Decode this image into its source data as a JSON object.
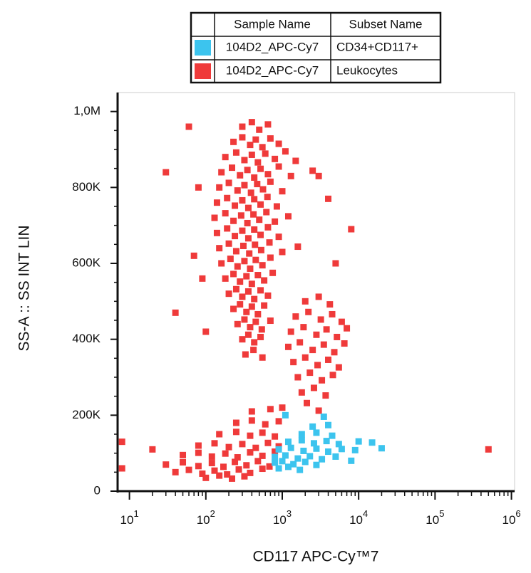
{
  "chart_data": {
    "type": "scatter",
    "legend_headers": [
      "Sample Name",
      "Subset Name"
    ],
    "xlabel": "CD117 APC-Cy™7",
    "ylabel": "SS-A :: SS INT LIN",
    "xscale": "log",
    "xlim": [
      7,
      1100000
    ],
    "xticks": [
      {
        "value": 10,
        "label": "10",
        "sup": "1"
      },
      {
        "value": 100,
        "label": "10",
        "sup": "2"
      },
      {
        "value": 1000,
        "label": "10",
        "sup": "3"
      },
      {
        "value": 10000,
        "label": "10",
        "sup": "4"
      },
      {
        "value": 100000,
        "label": "10",
        "sup": "5"
      },
      {
        "value": 1000000,
        "label": "10",
        "sup": "6"
      }
    ],
    "ylim": [
      0,
      1050000
    ],
    "yticks": [
      0,
      {
        "value": 200000,
        "label": "200K"
      },
      {
        "value": 400000,
        "label": "400K"
      },
      {
        "value": 600000,
        "label": "600K"
      },
      {
        "value": 800000,
        "label": "800K"
      },
      {
        "value": 1000000,
        "label": "1,0M"
      }
    ],
    "series": [
      {
        "sample": "104D2_APC-Cy7",
        "name": "CD34+CD117+",
        "color": "#3cc4ee",
        "x": [
          1100,
          3500,
          2500,
          4000,
          1800,
          2800,
          4500,
          1200,
          1800,
          2600,
          3800,
          5500,
          10000,
          15000,
          900,
          1300,
          1900,
          2800,
          4000,
          6000,
          9000,
          20000,
          800,
          1100,
          1600,
          2300,
          3300,
          5000,
          800,
          1000,
          1400,
          2000,
          2800,
          8000,
          900,
          1200,
          1700
        ],
        "values": [
          200000,
          196000,
          170000,
          174000,
          150000,
          154000,
          146000,
          130000,
          134000,
          126000,
          132000,
          124000,
          131000,
          128000,
          110000,
          114000,
          106000,
          112000,
          104000,
          111000,
          108000,
          113000,
          90000,
          94000,
          86000,
          92000,
          84000,
          91000,
          75000,
          79000,
          71000,
          77000,
          69000,
          80000,
          60000,
          64000,
          56000
        ]
      },
      {
        "sample": "104D2_APC-Cy7",
        "name": "Leukocytes",
        "color": "#ef3a3a",
        "x": [
          300,
          400,
          500,
          650,
          230,
          300,
          380,
          450,
          550,
          700,
          900,
          180,
          250,
          320,
          400,
          480,
          600,
          800,
          1100,
          1500,
          160,
          220,
          280,
          350,
          430,
          520,
          650,
          900,
          1300,
          2500,
          150,
          200,
          260,
          320,
          390,
          470,
          560,
          700,
          1000,
          140,
          190,
          240,
          300,
          360,
          430,
          520,
          640,
          850,
          130,
          180,
          230,
          290,
          350,
          420,
          500,
          620,
          800,
          1200,
          140,
          190,
          240,
          300,
          360,
          430,
          520,
          650,
          900,
          150,
          200,
          250,
          310,
          370,
          440,
          530,
          680,
          1000,
          1600,
          160,
          210,
          260,
          320,
          380,
          450,
          550,
          700,
          180,
          230,
          280,
          340,
          400,
          480,
          580,
          750,
          200,
          250,
          300,
          360,
          430,
          520,
          650,
          230,
          280,
          340,
          400,
          480,
          580,
          260,
          320,
          380,
          450,
          540,
          700,
          300,
          360,
          430,
          520,
          330,
          420,
          550,
          30,
          60,
          80,
          70,
          90,
          40,
          100,
          3000,
          4000,
          5000,
          8000,
          2000,
          3000,
          4200,
          1500,
          2200,
          3200,
          4500,
          6000,
          1300,
          1900,
          2800,
          3800,
          5200,
          7000,
          1200,
          1700,
          2500,
          3500,
          4800,
          6500,
          1400,
          2000,
          2900,
          4000,
          5500,
          1600,
          2300,
          3300,
          4600,
          1800,
          2600,
          3700,
          1000,
          2100,
          3000,
          400,
          700,
          250,
          400,
          600,
          900,
          150,
          250,
          380,
          550,
          800,
          80,
          130,
          200,
          300,
          450,
          650,
          900,
          50,
          80,
          120,
          180,
          260,
          380,
          550,
          800,
          30,
          50,
          80,
          120,
          170,
          240,
          340,
          480,
          680,
          40,
          60,
          90,
          130,
          190,
          270,
          380,
          550,
          100,
          150,
          220,
          320,
          8,
          8,
          20,
          500000
        ],
        "values": [
          960000,
          972000,
          952000,
          966000,
          920000,
          932000,
          912000,
          926000,
          906000,
          929000,
          915000,
          880000,
          892000,
          872000,
          886000,
          866000,
          889000,
          875000,
          895000,
          870000,
          840000,
          852000,
          832000,
          846000,
          826000,
          849000,
          835000,
          855000,
          830000,
          844000,
          800000,
          812000,
          792000,
          806000,
          786000,
          809000,
          795000,
          815000,
          790000,
          760000,
          772000,
          752000,
          766000,
          746000,
          769000,
          755000,
          775000,
          750000,
          720000,
          732000,
          712000,
          726000,
          706000,
          729000,
          715000,
          735000,
          710000,
          724000,
          680000,
          692000,
          672000,
          686000,
          666000,
          689000,
          675000,
          695000,
          670000,
          640000,
          652000,
          632000,
          646000,
          626000,
          649000,
          635000,
          655000,
          630000,
          644000,
          600000,
          612000,
          592000,
          606000,
          586000,
          609000,
          595000,
          615000,
          560000,
          572000,
          552000,
          566000,
          546000,
          569000,
          555000,
          575000,
          520000,
          532000,
          512000,
          526000,
          506000,
          529000,
          515000,
          480000,
          492000,
          472000,
          486000,
          466000,
          489000,
          440000,
          452000,
          432000,
          446000,
          426000,
          449000,
          400000,
          412000,
          392000,
          406000,
          360000,
          372000,
          352000,
          840000,
          960000,
          800000,
          620000,
          560000,
          470000,
          420000,
          830000,
          770000,
          600000,
          690000,
          500000,
          512000,
          492000,
          460000,
          472000,
          452000,
          466000,
          446000,
          420000,
          432000,
          412000,
          426000,
          406000,
          429000,
          380000,
          392000,
          372000,
          386000,
          366000,
          389000,
          340000,
          352000,
          332000,
          346000,
          326000,
          300000,
          312000,
          292000,
          306000,
          260000,
          272000,
          252000,
          220000,
          232000,
          212000,
          210000,
          216000,
          180000,
          186000,
          176000,
          184000,
          150000,
          156000,
          146000,
          154000,
          144000,
          120000,
          126000,
          116000,
          124000,
          114000,
          127000,
          118000,
          95000,
          101000,
          91000,
          99000,
          89000,
          102000,
          93000,
          104000,
          70000,
          76000,
          66000,
          74000,
          64000,
          77000,
          68000,
          79000,
          65000,
          50000,
          56000,
          46000,
          54000,
          44000,
          57000,
          48000,
          59000,
          35000,
          41000,
          33000,
          39000,
          130000,
          60000,
          110000,
          110000
        ]
      }
    ]
  }
}
